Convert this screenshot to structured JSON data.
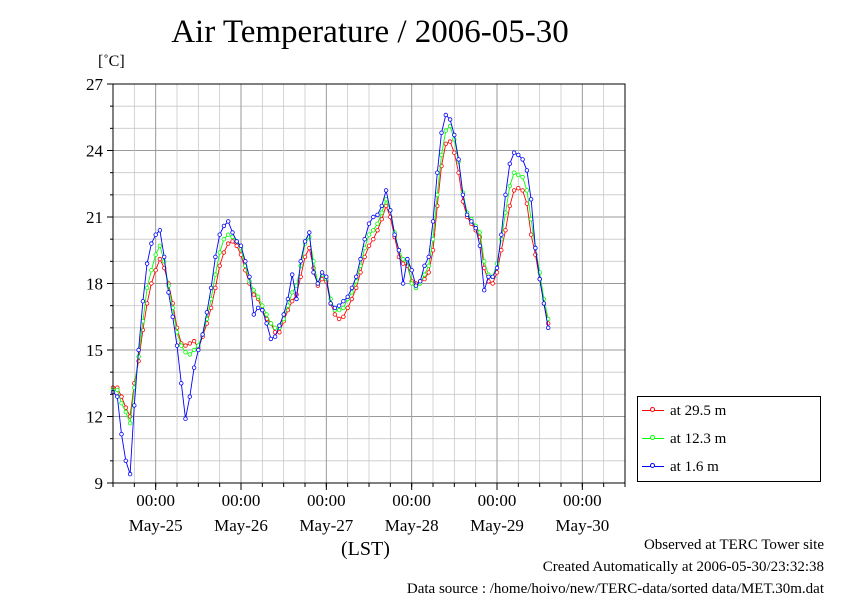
{
  "header": {
    "title": "Air Temperature / 2006-05-30",
    "unit": "[˚C]"
  },
  "footer": {
    "observed": "Observed at TERC Tower site",
    "created": "Created Automatically at 2006-05-30/23:32:38",
    "source": "Data source : /home/hoivo/new/TERC-data/sorted  data/MET.30m.dat"
  },
  "chart_data": {
    "type": "line",
    "title": "Air Temperature / 2006-05-30",
    "ylabel": "[˚C]",
    "xlabel": "(LST)",
    "ylim": [
      9,
      27
    ],
    "y_ticks": [
      9,
      12,
      15,
      18,
      21,
      24,
      27
    ],
    "xlim_days": [
      -0.5,
      5.5
    ],
    "x_ticks": [
      {
        "day": 0,
        "time": "00:00",
        "date": "May-25"
      },
      {
        "day": 1,
        "time": "00:00",
        "date": "May-26"
      },
      {
        "day": 2,
        "time": "00:00",
        "date": "May-27"
      },
      {
        "day": 3,
        "time": "00:00",
        "date": "May-28"
      },
      {
        "day": 4,
        "time": "00:00",
        "date": "May-29"
      },
      {
        "day": 5,
        "time": "00:00",
        "date": "May-30"
      }
    ],
    "grid": true,
    "legend_position": "lower-right outside",
    "series": [
      {
        "name": "at 29.5 m",
        "color": "#ff0000",
        "points": [
          [
            -0.5,
            13.3
          ],
          [
            -0.45,
            13.3
          ],
          [
            -0.4,
            12.9
          ],
          [
            -0.35,
            12.4
          ],
          [
            -0.3,
            12.0
          ],
          [
            -0.25,
            13.5
          ],
          [
            -0.2,
            14.5
          ],
          [
            -0.15,
            15.9
          ],
          [
            -0.1,
            17.1
          ],
          [
            -0.05,
            18.0
          ],
          [
            0.0,
            18.6
          ],
          [
            0.05,
            19.1
          ],
          [
            0.1,
            18.7
          ],
          [
            0.15,
            18.0
          ],
          [
            0.2,
            17.1
          ],
          [
            0.25,
            16.0
          ],
          [
            0.3,
            15.3
          ],
          [
            0.35,
            15.2
          ],
          [
            0.4,
            15.3
          ],
          [
            0.45,
            15.4
          ],
          [
            0.5,
            15.1
          ],
          [
            0.55,
            15.6
          ],
          [
            0.6,
            16.2
          ],
          [
            0.65,
            16.9
          ],
          [
            0.7,
            17.8
          ],
          [
            0.75,
            18.8
          ],
          [
            0.8,
            19.4
          ],
          [
            0.85,
            19.8
          ],
          [
            0.9,
            19.9
          ],
          [
            0.95,
            19.7
          ],
          [
            1.0,
            19.3
          ],
          [
            1.05,
            18.6
          ],
          [
            1.1,
            18.0
          ],
          [
            1.15,
            17.5
          ],
          [
            1.2,
            17.3
          ],
          [
            1.25,
            16.8
          ],
          [
            1.3,
            16.4
          ],
          [
            1.35,
            16.2
          ],
          [
            1.4,
            15.8
          ],
          [
            1.45,
            15.8
          ],
          [
            1.5,
            16.3
          ],
          [
            1.55,
            16.8
          ],
          [
            1.6,
            17.2
          ],
          [
            1.65,
            17.5
          ],
          [
            1.7,
            18.3
          ],
          [
            1.75,
            19.2
          ],
          [
            1.8,
            19.6
          ],
          [
            1.85,
            18.7
          ],
          [
            1.9,
            17.9
          ],
          [
            1.95,
            18.2
          ],
          [
            2.0,
            18.1
          ],
          [
            2.05,
            17.1
          ],
          [
            2.1,
            16.6
          ],
          [
            2.15,
            16.4
          ],
          [
            2.2,
            16.5
          ],
          [
            2.25,
            16.9
          ],
          [
            2.3,
            17.3
          ],
          [
            2.35,
            17.8
          ],
          [
            2.4,
            18.5
          ],
          [
            2.45,
            19.2
          ],
          [
            2.5,
            19.7
          ],
          [
            2.55,
            20.0
          ],
          [
            2.6,
            20.4
          ],
          [
            2.65,
            20.9
          ],
          [
            2.7,
            21.5
          ],
          [
            2.75,
            21.0
          ],
          [
            2.8,
            20.1
          ],
          [
            2.85,
            19.2
          ],
          [
            2.9,
            18.9
          ],
          [
            2.95,
            18.8
          ],
          [
            3.0,
            18.1
          ],
          [
            3.05,
            18.0
          ],
          [
            3.1,
            18.1
          ],
          [
            3.15,
            18.2
          ],
          [
            3.2,
            18.5
          ],
          [
            3.25,
            19.5
          ],
          [
            3.3,
            21.5
          ],
          [
            3.35,
            23.3
          ],
          [
            3.4,
            24.3
          ],
          [
            3.45,
            24.4
          ],
          [
            3.5,
            23.9
          ],
          [
            3.55,
            23.0
          ],
          [
            3.6,
            21.7
          ],
          [
            3.65,
            21.0
          ],
          [
            3.7,
            20.7
          ],
          [
            3.75,
            20.4
          ],
          [
            3.8,
            20.1
          ],
          [
            3.85,
            18.7
          ],
          [
            3.9,
            18.1
          ],
          [
            3.95,
            18.0
          ],
          [
            4.0,
            18.5
          ],
          [
            4.05,
            19.5
          ],
          [
            4.1,
            20.4
          ],
          [
            4.15,
            21.5
          ],
          [
            4.2,
            22.2
          ],
          [
            4.25,
            22.3
          ],
          [
            4.3,
            22.2
          ],
          [
            4.35,
            21.6
          ],
          [
            4.4,
            20.2
          ],
          [
            4.45,
            19.3
          ],
          [
            4.5,
            18.2
          ],
          [
            4.55,
            17.1
          ],
          [
            4.6,
            16.2
          ]
        ]
      },
      {
        "name": "at 12.3 m",
        "color": "#00ff00",
        "points": [
          [
            -0.5,
            13.2
          ],
          [
            -0.45,
            13.2
          ],
          [
            -0.4,
            12.6
          ],
          [
            -0.35,
            12.2
          ],
          [
            -0.3,
            11.7
          ],
          [
            -0.25,
            13.3
          ],
          [
            -0.2,
            14.7
          ],
          [
            -0.15,
            16.3
          ],
          [
            -0.1,
            17.8
          ],
          [
            -0.05,
            18.6
          ],
          [
            0.0,
            19.3
          ],
          [
            0.05,
            19.7
          ],
          [
            0.1,
            19.0
          ],
          [
            0.15,
            17.9
          ],
          [
            0.2,
            16.9
          ],
          [
            0.25,
            15.8
          ],
          [
            0.3,
            15.2
          ],
          [
            0.35,
            14.9
          ],
          [
            0.4,
            14.8
          ],
          [
            0.45,
            15.0
          ],
          [
            0.5,
            15.2
          ],
          [
            0.55,
            15.7
          ],
          [
            0.6,
            16.4
          ],
          [
            0.65,
            17.3
          ],
          [
            0.7,
            18.4
          ],
          [
            0.75,
            19.4
          ],
          [
            0.8,
            20.0
          ],
          [
            0.85,
            20.2
          ],
          [
            0.9,
            20.1
          ],
          [
            0.95,
            19.9
          ],
          [
            1.0,
            19.6
          ],
          [
            1.05,
            18.8
          ],
          [
            1.1,
            18.1
          ],
          [
            1.15,
            17.7
          ],
          [
            1.2,
            17.4
          ],
          [
            1.25,
            17.0
          ],
          [
            1.3,
            16.6
          ],
          [
            1.35,
            16.2
          ],
          [
            1.4,
            16.0
          ],
          [
            1.45,
            16.0
          ],
          [
            1.5,
            16.4
          ],
          [
            1.55,
            17.0
          ],
          [
            1.6,
            17.6
          ],
          [
            1.65,
            17.9
          ],
          [
            1.7,
            18.8
          ],
          [
            1.75,
            19.8
          ],
          [
            1.8,
            20.1
          ],
          [
            1.85,
            19.0
          ],
          [
            1.9,
            18.0
          ],
          [
            1.95,
            18.4
          ],
          [
            2.0,
            18.2
          ],
          [
            2.05,
            17.3
          ],
          [
            2.1,
            16.8
          ],
          [
            2.15,
            16.8
          ],
          [
            2.2,
            16.9
          ],
          [
            2.25,
            17.3
          ],
          [
            2.3,
            17.6
          ],
          [
            2.35,
            18.1
          ],
          [
            2.4,
            18.8
          ],
          [
            2.45,
            19.6
          ],
          [
            2.5,
            20.2
          ],
          [
            2.55,
            20.4
          ],
          [
            2.6,
            20.7
          ],
          [
            2.65,
            21.2
          ],
          [
            2.7,
            21.8
          ],
          [
            2.75,
            21.3
          ],
          [
            2.8,
            20.3
          ],
          [
            2.85,
            19.5
          ],
          [
            2.9,
            19.1
          ],
          [
            2.95,
            19.0
          ],
          [
            3.0,
            18.0
          ],
          [
            3.05,
            17.8
          ],
          [
            3.1,
            18.0
          ],
          [
            3.15,
            18.4
          ],
          [
            3.2,
            18.8
          ],
          [
            3.25,
            20.0
          ],
          [
            3.3,
            22.0
          ],
          [
            3.35,
            23.8
          ],
          [
            3.4,
            24.9
          ],
          [
            3.45,
            25.1
          ],
          [
            3.5,
            24.5
          ],
          [
            3.55,
            23.5
          ],
          [
            3.6,
            22.1
          ],
          [
            3.65,
            21.2
          ],
          [
            3.7,
            20.9
          ],
          [
            3.75,
            20.6
          ],
          [
            3.8,
            20.3
          ],
          [
            3.85,
            19.0
          ],
          [
            3.9,
            18.4
          ],
          [
            3.95,
            18.3
          ],
          [
            4.0,
            18.9
          ],
          [
            4.05,
            20.0
          ],
          [
            4.1,
            21.2
          ],
          [
            4.15,
            22.4
          ],
          [
            4.2,
            23.0
          ],
          [
            4.25,
            22.9
          ],
          [
            4.3,
            22.8
          ],
          [
            4.35,
            22.2
          ],
          [
            4.4,
            20.9
          ],
          [
            4.45,
            19.6
          ],
          [
            4.5,
            18.5
          ],
          [
            4.55,
            17.3
          ],
          [
            4.6,
            16.4
          ]
        ]
      },
      {
        "name": "at 1.6 m",
        "color": "#0000ff",
        "points": [
          [
            -0.5,
            13.1
          ],
          [
            -0.45,
            12.9
          ],
          [
            -0.4,
            11.2
          ],
          [
            -0.35,
            10.0
          ],
          [
            -0.3,
            9.4
          ],
          [
            -0.25,
            12.5
          ],
          [
            -0.2,
            15.0
          ],
          [
            -0.15,
            17.2
          ],
          [
            -0.1,
            18.9
          ],
          [
            -0.05,
            19.8
          ],
          [
            0.0,
            20.2
          ],
          [
            0.05,
            20.4
          ],
          [
            0.1,
            19.2
          ],
          [
            0.15,
            17.6
          ],
          [
            0.2,
            16.5
          ],
          [
            0.25,
            15.2
          ],
          [
            0.3,
            13.5
          ],
          [
            0.35,
            11.9
          ],
          [
            0.4,
            12.9
          ],
          [
            0.45,
            14.2
          ],
          [
            0.5,
            15.0
          ],
          [
            0.55,
            15.7
          ],
          [
            0.6,
            16.7
          ],
          [
            0.65,
            17.8
          ],
          [
            0.7,
            19.2
          ],
          [
            0.75,
            20.2
          ],
          [
            0.8,
            20.6
          ],
          [
            0.85,
            20.8
          ],
          [
            0.9,
            20.3
          ],
          [
            0.95,
            19.9
          ],
          [
            1.0,
            19.7
          ],
          [
            1.05,
            19.0
          ],
          [
            1.1,
            18.3
          ],
          [
            1.15,
            16.6
          ],
          [
            1.2,
            16.9
          ],
          [
            1.25,
            16.8
          ],
          [
            1.3,
            16.2
          ],
          [
            1.35,
            15.5
          ],
          [
            1.4,
            15.6
          ],
          [
            1.45,
            16.1
          ],
          [
            1.5,
            16.6
          ],
          [
            1.55,
            17.3
          ],
          [
            1.6,
            18.4
          ],
          [
            1.65,
            17.3
          ],
          [
            1.7,
            19.0
          ],
          [
            1.75,
            19.9
          ],
          [
            1.8,
            20.3
          ],
          [
            1.85,
            18.5
          ],
          [
            1.9,
            18.0
          ],
          [
            1.95,
            18.5
          ],
          [
            2.0,
            18.3
          ],
          [
            2.05,
            17.1
          ],
          [
            2.1,
            16.9
          ],
          [
            2.15,
            17.0
          ],
          [
            2.2,
            17.2
          ],
          [
            2.25,
            17.4
          ],
          [
            2.3,
            17.8
          ],
          [
            2.35,
            18.3
          ],
          [
            2.4,
            19.1
          ],
          [
            2.45,
            20.0
          ],
          [
            2.5,
            20.7
          ],
          [
            2.55,
            21.0
          ],
          [
            2.6,
            21.1
          ],
          [
            2.65,
            21.5
          ],
          [
            2.7,
            22.2
          ],
          [
            2.75,
            21.3
          ],
          [
            2.8,
            20.2
          ],
          [
            2.85,
            19.5
          ],
          [
            2.9,
            18.0
          ],
          [
            2.95,
            19.1
          ],
          [
            3.0,
            18.6
          ],
          [
            3.05,
            17.9
          ],
          [
            3.1,
            18.1
          ],
          [
            3.15,
            18.8
          ],
          [
            3.2,
            19.2
          ],
          [
            3.25,
            20.8
          ],
          [
            3.3,
            23.0
          ],
          [
            3.35,
            24.8
          ],
          [
            3.4,
            25.6
          ],
          [
            3.45,
            25.4
          ],
          [
            3.5,
            24.7
          ],
          [
            3.55,
            23.6
          ],
          [
            3.6,
            22.0
          ],
          [
            3.65,
            21.1
          ],
          [
            3.7,
            20.8
          ],
          [
            3.75,
            20.5
          ],
          [
            3.8,
            19.7
          ],
          [
            3.85,
            17.7
          ],
          [
            3.9,
            18.3
          ],
          [
            3.95,
            18.3
          ],
          [
            4.0,
            18.7
          ],
          [
            4.05,
            20.2
          ],
          [
            4.1,
            22.0
          ],
          [
            4.15,
            23.4
          ],
          [
            4.2,
            23.9
          ],
          [
            4.25,
            23.8
          ],
          [
            4.3,
            23.6
          ],
          [
            4.35,
            23.1
          ],
          [
            4.4,
            21.8
          ],
          [
            4.45,
            19.6
          ],
          [
            4.5,
            18.2
          ],
          [
            4.55,
            17.1
          ],
          [
            4.6,
            16.0
          ]
        ]
      }
    ]
  }
}
